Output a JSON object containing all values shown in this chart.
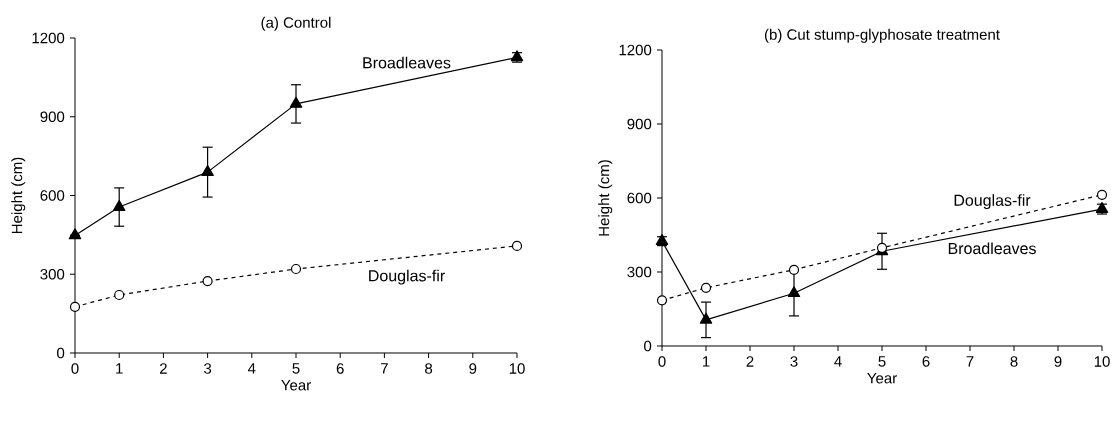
{
  "chart_data": [
    {
      "type": "line",
      "title": "(a) Control",
      "xlabel": "Year",
      "ylabel": "Height (cm)",
      "xlim": [
        0,
        10
      ],
      "xticks": [
        0,
        1,
        2,
        3,
        4,
        5,
        6,
        7,
        8,
        9,
        10
      ],
      "ylim": [
        0,
        1200
      ],
      "yticks": [
        0,
        300,
        600,
        900,
        1200
      ],
      "grid": false,
      "legend": false,
      "series": [
        {
          "name": "Broadleaves",
          "color": "#000000",
          "marker": "triangle",
          "line_style": "solid",
          "x": [
            0,
            1,
            3,
            5,
            10
          ],
          "values": [
            448,
            556,
            689,
            949,
            1126
          ],
          "errors": [
            null,
            73,
            95,
            73,
            18
          ]
        },
        {
          "name": "Douglas-fir",
          "color": "#000000",
          "marker": "circle",
          "line_style": "dashed",
          "x": [
            0,
            1,
            3,
            5,
            10
          ],
          "values": [
            176,
            221,
            274,
            320,
            408
          ]
        }
      ]
    },
    {
      "type": "line",
      "title": "(b) Cut stump-glyphosate treatment",
      "xlabel": "Year",
      "ylabel": "Height (cm)",
      "xlim": [
        0,
        10
      ],
      "xticks": [
        0,
        1,
        2,
        3,
        4,
        5,
        6,
        7,
        8,
        9,
        10
      ],
      "ylim": [
        0,
        1200
      ],
      "yticks": [
        0,
        300,
        600,
        900,
        1200
      ],
      "grid": false,
      "legend": false,
      "series": [
        {
          "name": "Broadleaves",
          "color": "#000000",
          "marker": "triangle",
          "line_style": "solid",
          "x": [
            0,
            1,
            3,
            5,
            10
          ],
          "values": [
            425,
            106,
            214,
            384,
            555
          ],
          "errors": [
            18,
            72,
            92,
            73,
            20
          ]
        },
        {
          "name": "Douglas-fir",
          "color": "#000000",
          "marker": "circle",
          "line_style": "dashed",
          "x": [
            0,
            1,
            3,
            5,
            10
          ],
          "values": [
            185,
            236,
            309,
            398,
            613
          ]
        }
      ]
    }
  ]
}
